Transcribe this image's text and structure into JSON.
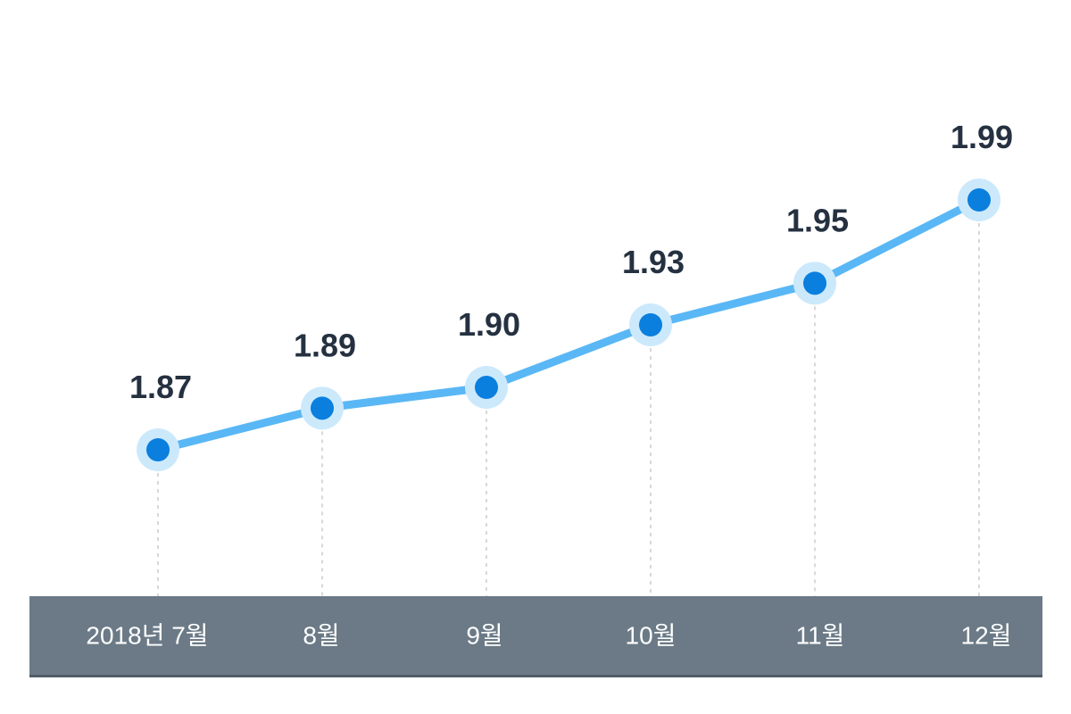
{
  "chart_data": {
    "type": "line",
    "categories": [
      "2018년 7월",
      "8월",
      "9월",
      "10월",
      "11월",
      "12월"
    ],
    "values": [
      1.87,
      1.89,
      1.9,
      1.93,
      1.95,
      1.99
    ],
    "value_labels": [
      "1.87",
      "1.89",
      "1.90",
      "1.93",
      "1.95",
      "1.99"
    ],
    "title": "",
    "xlabel": "",
    "ylabel": "",
    "grid": false,
    "colors": {
      "line": "#5AB7F5",
      "marker": "#0A7FDE",
      "marker_halo": "#CCE9FC",
      "axis_band": "#6B7A86",
      "axis_band_edge": "#4F5D68",
      "guide": "#CCCCCC",
      "label": "#253140",
      "tick_text": "#FFFFFF"
    }
  }
}
